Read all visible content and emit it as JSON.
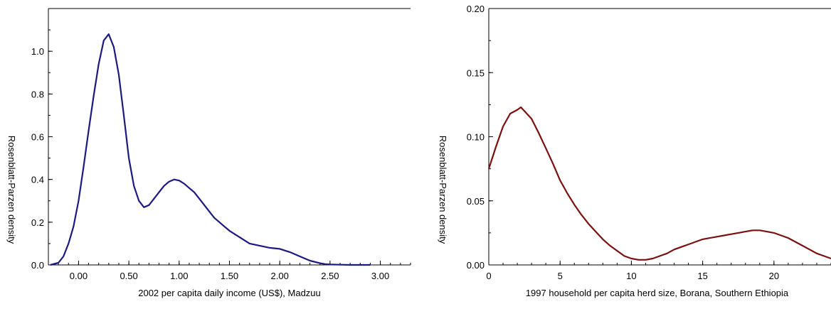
{
  "chart_data": [
    {
      "type": "line",
      "xlabel": "2002 per capita daily income (US$), Madzuu",
      "ylabel": "Rosenblatt-Parzen density",
      "xlim": [
        -0.3,
        3.3
      ],
      "ylim": [
        0,
        1.2
      ],
      "grid": false,
      "x_ticks": [
        "0.00",
        "0.50",
        "1.00",
        "1.50",
        "2.00",
        "2.50",
        "3.00"
      ],
      "y_ticks": [
        "0.0",
        "0.2",
        "0.4",
        "0.6",
        "0.8",
        "1.0"
      ],
      "colors": {
        "line": "#1a1a80",
        "axis": "#000000"
      },
      "series": [
        {
          "x": [
            -0.28,
            -0.2,
            -0.15,
            -0.1,
            -0.05,
            0.0,
            0.05,
            0.1,
            0.15,
            0.2,
            0.25,
            0.3,
            0.35,
            0.4,
            0.45,
            0.5,
            0.55,
            0.6,
            0.65,
            0.7,
            0.75,
            0.8,
            0.85,
            0.9,
            0.95,
            1.0,
            1.05,
            1.1,
            1.15,
            1.2,
            1.25,
            1.3,
            1.35,
            1.4,
            1.45,
            1.5,
            1.6,
            1.7,
            1.8,
            1.9,
            2.0,
            2.1,
            2.2,
            2.3,
            2.4,
            2.45,
            2.5,
            2.6,
            2.7,
            2.8,
            2.9
          ],
          "y": [
            0.0,
            0.01,
            0.04,
            0.1,
            0.18,
            0.3,
            0.46,
            0.63,
            0.79,
            0.94,
            1.05,
            1.08,
            1.02,
            0.89,
            0.7,
            0.5,
            0.37,
            0.3,
            0.27,
            0.28,
            0.31,
            0.34,
            0.37,
            0.39,
            0.4,
            0.395,
            0.38,
            0.36,
            0.34,
            0.31,
            0.28,
            0.25,
            0.22,
            0.2,
            0.18,
            0.16,
            0.13,
            0.1,
            0.09,
            0.08,
            0.075,
            0.06,
            0.04,
            0.02,
            0.008,
            0.004,
            0.002,
            0.001,
            0.0,
            0.0,
            0.0
          ]
        }
      ]
    },
    {
      "type": "line",
      "xlabel": "1997 household per capita herd size, Borana, Southern Ethiopia",
      "ylabel": "Rosenblatt-Parzen density",
      "xlim": [
        0,
        24
      ],
      "ylim": [
        0,
        0.2
      ],
      "grid": false,
      "x_ticks": [
        "0",
        "5",
        "10",
        "15",
        "20"
      ],
      "y_ticks": [
        "0.00",
        "0.05",
        "0.10",
        "0.15",
        "0.20"
      ],
      "colors": {
        "line": "#7a1010",
        "axis": "#000000"
      },
      "series": [
        {
          "x": [
            0.0,
            0.5,
            1.0,
            1.5,
            2.0,
            2.25,
            2.5,
            3.0,
            3.5,
            4.0,
            4.5,
            5.0,
            5.5,
            6.0,
            6.5,
            7.0,
            7.5,
            8.0,
            8.5,
            9.0,
            9.5,
            10.0,
            10.5,
            11.0,
            11.5,
            12.0,
            12.5,
            13.0,
            13.5,
            14.0,
            14.5,
            15.0,
            15.5,
            16.0,
            16.5,
            17.0,
            17.5,
            18.0,
            18.5,
            19.0,
            19.5,
            20.0,
            20.5,
            21.0,
            21.5,
            22.0,
            22.5,
            23.0,
            23.5,
            24.0
          ],
          "y": [
            0.075,
            0.092,
            0.108,
            0.118,
            0.121,
            0.123,
            0.12,
            0.114,
            0.103,
            0.091,
            0.079,
            0.066,
            0.056,
            0.047,
            0.039,
            0.032,
            0.026,
            0.02,
            0.015,
            0.011,
            0.007,
            0.005,
            0.004,
            0.004,
            0.005,
            0.007,
            0.009,
            0.012,
            0.014,
            0.016,
            0.018,
            0.02,
            0.021,
            0.022,
            0.023,
            0.024,
            0.025,
            0.026,
            0.027,
            0.027,
            0.026,
            0.025,
            0.023,
            0.021,
            0.018,
            0.015,
            0.012,
            0.009,
            0.007,
            0.005
          ]
        }
      ]
    }
  ]
}
